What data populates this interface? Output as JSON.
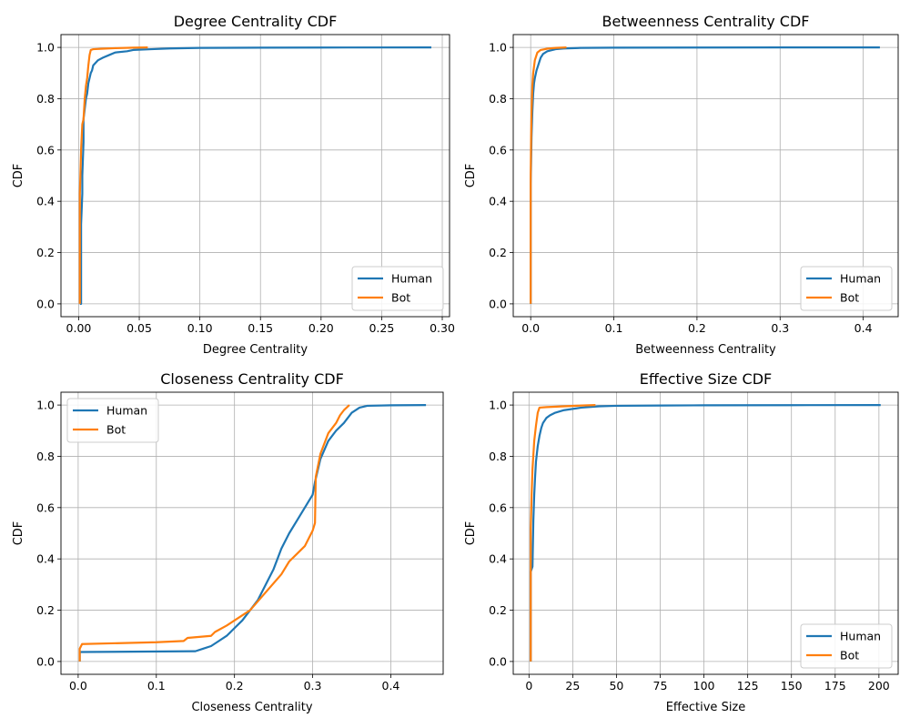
{
  "figure": {
    "colors": {
      "human": "#1f77b4",
      "bot": "#ff7f0e",
      "grid": "#b0b0b0"
    }
  },
  "chart_data": [
    {
      "type": "line",
      "title": "Degree Centrality CDF",
      "xlabel": "Degree Centrality",
      "ylabel": "CDF",
      "xlim": [
        -0.0146,
        0.306
      ],
      "ylim": [
        -0.05,
        1.05
      ],
      "xticks": [
        0.0,
        0.05,
        0.1,
        0.15,
        0.2,
        0.25,
        0.3
      ],
      "xtick_labels": [
        "0.00",
        "0.05",
        "0.10",
        "0.15",
        "0.20",
        "0.25",
        "0.30"
      ],
      "yticks": [
        0.0,
        0.2,
        0.4,
        0.6,
        0.8,
        1.0
      ],
      "ytick_labels": [
        "0.0",
        "0.2",
        "0.4",
        "0.6",
        "0.8",
        "1.0"
      ],
      "grid": true,
      "legend": "lower right",
      "series": [
        {
          "name": "Human",
          "x": [
            0.001,
            0.002,
            0.002,
            0.003,
            0.003,
            0.004,
            0.004,
            0.005,
            0.006,
            0.007,
            0.008,
            0.009,
            0.01,
            0.011,
            0.012,
            0.014,
            0.016,
            0.02,
            0.025,
            0.03,
            0.04,
            0.045,
            0.06,
            0.075,
            0.1,
            0.15,
            0.2,
            0.291
          ],
          "y": [
            0.0,
            0.0,
            0.31,
            0.43,
            0.5,
            0.63,
            0.72,
            0.76,
            0.8,
            0.82,
            0.86,
            0.88,
            0.9,
            0.91,
            0.93,
            0.94,
            0.95,
            0.96,
            0.97,
            0.98,
            0.985,
            0.99,
            0.993,
            0.996,
            0.998,
            0.999,
            0.9995,
            1.0
          ]
        },
        {
          "name": "Bot",
          "x": [
            0.001,
            0.001,
            0.002,
            0.003,
            0.004,
            0.005,
            0.006,
            0.007,
            0.008,
            0.009,
            0.01,
            0.012,
            0.02,
            0.03,
            0.045,
            0.057
          ],
          "y": [
            0.0,
            0.43,
            0.6,
            0.7,
            0.72,
            0.8,
            0.85,
            0.88,
            0.93,
            0.97,
            0.99,
            0.993,
            0.995,
            0.997,
            0.999,
            1.0
          ]
        }
      ]
    },
    {
      "type": "line",
      "title": "Betweenness Centrality CDF",
      "xlabel": "Betweenness Centrality",
      "ylabel": "CDF",
      "xlim": [
        -0.021,
        0.442
      ],
      "ylim": [
        -0.05,
        1.05
      ],
      "xticks": [
        0.0,
        0.1,
        0.2,
        0.3,
        0.4
      ],
      "xtick_labels": [
        "0.0",
        "0.1",
        "0.2",
        "0.3",
        "0.4"
      ],
      "yticks": [
        0.0,
        0.2,
        0.4,
        0.6,
        0.8,
        1.0
      ],
      "ytick_labels": [
        "0.0",
        "0.2",
        "0.4",
        "0.6",
        "0.8",
        "1.0"
      ],
      "grid": true,
      "legend": "lower right",
      "series": [
        {
          "name": "Human",
          "x": [
            0.0,
            0.0,
            0.0005,
            0.001,
            0.002,
            0.003,
            0.004,
            0.005,
            0.007,
            0.01,
            0.012,
            0.015,
            0.02,
            0.03,
            0.04,
            0.06,
            0.1,
            0.2,
            0.3,
            0.42
          ],
          "y": [
            0.0,
            0.47,
            0.55,
            0.65,
            0.75,
            0.82,
            0.86,
            0.88,
            0.91,
            0.94,
            0.96,
            0.975,
            0.985,
            0.993,
            0.996,
            0.998,
            0.999,
            0.9995,
            0.9998,
            1.0
          ]
        },
        {
          "name": "Bot",
          "x": [
            0.0,
            0.0,
            0.0005,
            0.001,
            0.002,
            0.003,
            0.005,
            0.008,
            0.012,
            0.02,
            0.03,
            0.043
          ],
          "y": [
            0.0,
            0.5,
            0.65,
            0.75,
            0.85,
            0.9,
            0.95,
            0.98,
            0.99,
            0.995,
            0.998,
            1.0
          ]
        }
      ]
    },
    {
      "type": "line",
      "title": "Closeness Centrality CDF",
      "xlabel": "Closeness Centrality",
      "ylabel": "CDF",
      "xlim": [
        -0.022,
        0.467
      ],
      "ylim": [
        -0.05,
        1.05
      ],
      "xticks": [
        0.0,
        0.1,
        0.2,
        0.3,
        0.4
      ],
      "xtick_labels": [
        "0.0",
        "0.1",
        "0.2",
        "0.3",
        "0.4"
      ],
      "yticks": [
        0.0,
        0.2,
        0.4,
        0.6,
        0.8,
        1.0
      ],
      "ytick_labels": [
        "0.0",
        "0.2",
        "0.4",
        "0.6",
        "0.8",
        "1.0"
      ],
      "grid": true,
      "legend": "upper left",
      "series": [
        {
          "name": "Human",
          "x": [
            0.002,
            0.002,
            0.15,
            0.16,
            0.17,
            0.18,
            0.19,
            0.2,
            0.21,
            0.22,
            0.23,
            0.24,
            0.25,
            0.26,
            0.27,
            0.28,
            0.29,
            0.3,
            0.303,
            0.31,
            0.32,
            0.33,
            0.34,
            0.35,
            0.36,
            0.37,
            0.4,
            0.445
          ],
          "y": [
            0.0,
            0.037,
            0.04,
            0.05,
            0.06,
            0.08,
            0.1,
            0.13,
            0.16,
            0.2,
            0.24,
            0.3,
            0.36,
            0.44,
            0.5,
            0.55,
            0.6,
            0.65,
            0.7,
            0.79,
            0.86,
            0.9,
            0.93,
            0.97,
            0.99,
            0.997,
            0.999,
            1.0
          ]
        },
        {
          "name": "Bot",
          "x": [
            0.002,
            0.002,
            0.005,
            0.1,
            0.135,
            0.14,
            0.17,
            0.175,
            0.19,
            0.2,
            0.22,
            0.24,
            0.26,
            0.27,
            0.28,
            0.29,
            0.295,
            0.3,
            0.303,
            0.304,
            0.31,
            0.32,
            0.33,
            0.335,
            0.34,
            0.347
          ],
          "y": [
            0.0,
            0.05,
            0.068,
            0.075,
            0.08,
            0.092,
            0.1,
            0.115,
            0.14,
            0.16,
            0.2,
            0.27,
            0.34,
            0.39,
            0.42,
            0.45,
            0.48,
            0.51,
            0.54,
            0.72,
            0.81,
            0.89,
            0.93,
            0.96,
            0.98,
            1.0
          ]
        }
      ]
    },
    {
      "type": "line",
      "title": "Effective Size CDF",
      "xlabel": "Effective Size",
      "ylabel": "CDF",
      "xlim": [
        -9.0,
        211.0
      ],
      "ylim": [
        -0.05,
        1.05
      ],
      "xticks": [
        0,
        25,
        50,
        75,
        100,
        125,
        150,
        175,
        200
      ],
      "xtick_labels": [
        "0",
        "25",
        "50",
        "75",
        "100",
        "125",
        "150",
        "175",
        "200"
      ],
      "yticks": [
        0.0,
        0.2,
        0.4,
        0.6,
        0.8,
        1.0
      ],
      "ytick_labels": [
        "0.0",
        "0.2",
        "0.4",
        "0.6",
        "0.8",
        "1.0"
      ],
      "grid": true,
      "legend": "lower right",
      "series": [
        {
          "name": "Human",
          "x": [
            1.0,
            1.0,
            2.0,
            2.5,
            3.0,
            3.5,
            4.0,
            5.0,
            6.0,
            7.0,
            8.0,
            10.0,
            12.0,
            15.0,
            20.0,
            30.0,
            40.0,
            50.0,
            75.0,
            100.0,
            150.0,
            201.0
          ],
          "y": [
            0.0,
            0.35,
            0.37,
            0.55,
            0.65,
            0.72,
            0.78,
            0.84,
            0.88,
            0.91,
            0.93,
            0.95,
            0.96,
            0.97,
            0.98,
            0.99,
            0.995,
            0.997,
            0.998,
            0.999,
            0.9995,
            1.0
          ]
        },
        {
          "name": "Bot",
          "x": [
            1.0,
            1.0,
            1.5,
            2.0,
            3.0,
            4.0,
            5.0,
            6.0,
            10.0,
            20.0,
            30.0,
            38.0
          ],
          "y": [
            0.0,
            0.52,
            0.65,
            0.75,
            0.86,
            0.92,
            0.97,
            0.99,
            0.992,
            0.995,
            0.998,
            1.0
          ]
        }
      ]
    }
  ]
}
